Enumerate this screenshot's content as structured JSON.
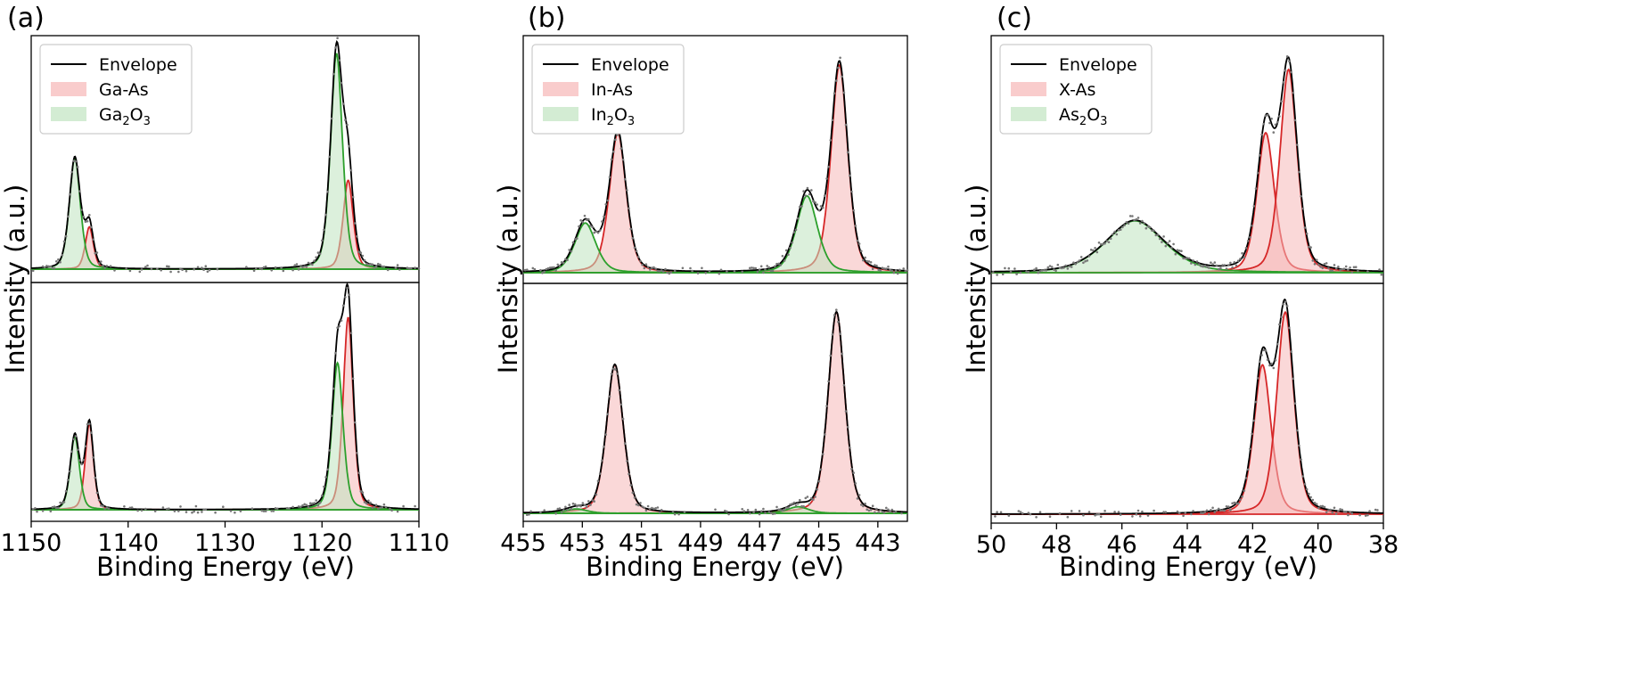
{
  "chart_data": [
    {
      "type": "line",
      "panel_label": "(a)",
      "xlabel": "Binding Energy (eV)",
      "ylabel": "Intensity (a.u.)",
      "xlim": [
        1150,
        1110
      ],
      "x_reversed": true,
      "x_ticks": [
        1150,
        1140,
        1130,
        1120,
        1110
      ],
      "y_ticks_shown": false,
      "legend": {
        "position": "top-left",
        "entries": [
          {
            "kind": "line",
            "text": "Envelope",
            "color": "#000000"
          },
          {
            "kind": "patch",
            "text": "Ga-As",
            "sub": "",
            "tail": "",
            "color": "#d62728"
          },
          {
            "kind": "patch",
            "text": "Ga",
            "sub": "2",
            "tail": "O",
            "sub2": "3",
            "color": "#2ca02c"
          }
        ]
      },
      "subplots": [
        {
          "position": "top",
          "ylim": [
            0,
            1.1
          ],
          "components": [
            {
              "name": "Ga-As",
              "color": "#d62728",
              "fill": "#f5b8b8",
              "peaks": [
                {
                  "center": 1144.0,
                  "amp": 0.19,
                  "width": 0.45
                },
                {
                  "center": 1117.3,
                  "amp": 0.4,
                  "width": 0.55
                }
              ]
            },
            {
              "name": "Ga2O3",
              "color": "#2ca02c",
              "fill": "#bfe3bf",
              "peaks": [
                {
                  "center": 1145.5,
                  "amp": 0.5,
                  "width": 0.6
                },
                {
                  "center": 1118.5,
                  "amp": 0.97,
                  "width": 0.65
                }
              ]
            }
          ]
        },
        {
          "position": "bottom",
          "ylim": [
            0,
            1.1
          ],
          "components": [
            {
              "name": "Ga-As",
              "color": "#d62728",
              "fill": "#f5b8b8",
              "peaks": [
                {
                  "center": 1144.0,
                  "amp": 0.4,
                  "width": 0.45
                },
                {
                  "center": 1117.3,
                  "amp": 0.89,
                  "width": 0.55
                }
              ]
            },
            {
              "name": "Ga2O3",
              "color": "#2ca02c",
              "fill": "#bfe3bf",
              "peaks": [
                {
                  "center": 1145.5,
                  "amp": 0.34,
                  "width": 0.5
                },
                {
                  "center": 1118.4,
                  "amp": 0.68,
                  "width": 0.6
                }
              ]
            }
          ]
        }
      ]
    },
    {
      "type": "line",
      "panel_label": "(b)",
      "xlabel": "Binding Energy (eV)",
      "ylabel": "Intensity (a.u.)",
      "xlim": [
        455,
        442
      ],
      "x_reversed": true,
      "x_ticks": [
        455,
        453,
        451,
        449,
        447,
        445,
        443
      ],
      "y_ticks_shown": false,
      "legend": {
        "position": "top-left",
        "entries": [
          {
            "kind": "line",
            "text": "Envelope",
            "color": "#000000"
          },
          {
            "kind": "patch",
            "text": "In-As",
            "sub": "",
            "tail": "",
            "color": "#d62728"
          },
          {
            "kind": "patch",
            "text": "In",
            "sub": "2",
            "tail": "O",
            "sub2": "3",
            "color": "#2ca02c"
          }
        ]
      },
      "subplots": [
        {
          "position": "top",
          "ylim": [
            0,
            1.1
          ],
          "components": [
            {
              "name": "In-As",
              "color": "#d62728",
              "fill": "#f5b8b8",
              "peaks": [
                {
                  "center": 451.8,
                  "amp": 0.62,
                  "width": 0.3
                },
                {
                  "center": 444.3,
                  "amp": 0.92,
                  "width": 0.3
                }
              ]
            },
            {
              "name": "In2O3",
              "color": "#2ca02c",
              "fill": "#bfe3bf",
              "peaks": [
                {
                  "center": 452.9,
                  "amp": 0.22,
                  "width": 0.38
                },
                {
                  "center": 445.4,
                  "amp": 0.34,
                  "width": 0.38
                }
              ]
            }
          ]
        },
        {
          "position": "bottom",
          "ylim": [
            0,
            1.1
          ],
          "components": [
            {
              "name": "In-As",
              "color": "#d62728",
              "fill": "#f5b8b8",
              "peaks": [
                {
                  "center": 451.9,
                  "amp": 0.68,
                  "width": 0.3
                },
                {
                  "center": 444.4,
                  "amp": 0.92,
                  "width": 0.3
                }
              ]
            },
            {
              "name": "In2O3",
              "color": "#2ca02c",
              "fill": "#bfe3bf",
              "peaks": [
                {
                  "center": 453.2,
                  "amp": 0.02,
                  "width": 0.38
                },
                {
                  "center": 445.7,
                  "amp": 0.03,
                  "width": 0.38
                }
              ]
            }
          ]
        }
      ]
    },
    {
      "type": "line",
      "panel_label": "(c)",
      "xlabel": "Binding Energy (eV)",
      "ylabel": "Intensity (a.u.)",
      "xlim": [
        50,
        38
      ],
      "x_reversed": true,
      "x_ticks": [
        50,
        48,
        46,
        44,
        42,
        40,
        38
      ],
      "y_ticks_shown": false,
      "legend": {
        "position": "top-left",
        "entries": [
          {
            "kind": "line",
            "text": "Envelope",
            "color": "#000000"
          },
          {
            "kind": "patch",
            "text": "X-As",
            "sub": "",
            "tail": "",
            "color": "#d62728"
          },
          {
            "kind": "patch",
            "text": "As",
            "sub": "2",
            "tail": "O",
            "sub2": "3",
            "color": "#2ca02c"
          }
        ]
      },
      "subplots": [
        {
          "position": "top",
          "ylim": [
            0,
            1.1
          ],
          "components": [
            {
              "name": "X-As",
              "color": "#d62728",
              "fill": "#f5b8b8",
              "peaks": [
                {
                  "center": 41.6,
                  "amp": 0.62,
                  "width": 0.28
                },
                {
                  "center": 40.9,
                  "amp": 0.9,
                  "width": 0.28
                }
              ]
            },
            {
              "name": "As2O3",
              "color": "#2ca02c",
              "fill": "#bfe3bf",
              "peaks": [
                {
                  "center": 45.6,
                  "amp": 0.23,
                  "width": 0.95
                }
              ]
            }
          ]
        },
        {
          "position": "bottom",
          "ylim": [
            0,
            1.1
          ],
          "components": [
            {
              "name": "X-As",
              "color": "#d62728",
              "fill": "#f5b8b8",
              "peaks": [
                {
                  "center": 41.7,
                  "amp": 0.68,
                  "width": 0.28
                },
                {
                  "center": 41.0,
                  "amp": 0.92,
                  "width": 0.28
                }
              ]
            }
          ]
        }
      ]
    }
  ]
}
